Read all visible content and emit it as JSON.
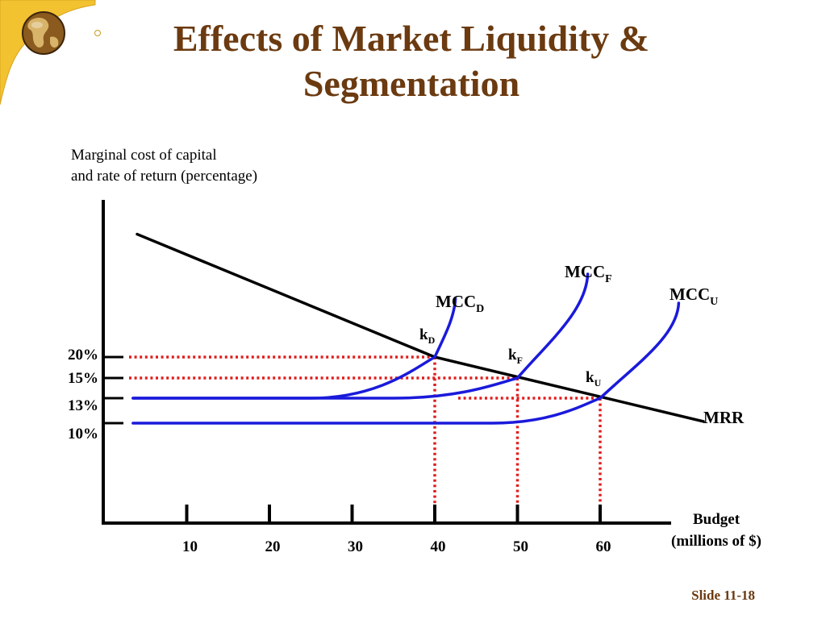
{
  "slide": {
    "title_line1": "Effects of Market Liquidity &",
    "title_line2": "Segmentation",
    "slide_number": "Slide 11-18"
  },
  "colors": {
    "title": "#6b3a10",
    "mcc_curves": "#1a1adb",
    "mrr_line": "#000000",
    "guide_lines": "#e11d1d"
  },
  "chart_data": {
    "type": "line",
    "ylabel_line1": "Marginal cost of capital",
    "ylabel_line2": "and rate of return (percentage)",
    "xlabel_line1": "Budget",
    "xlabel_line2": "(millions of $)",
    "x_ticks": [
      "10",
      "20",
      "30",
      "40",
      "50",
      "60"
    ],
    "y_ticks": [
      "20%",
      "15%",
      "13%",
      "10%"
    ],
    "series": [
      {
        "name": "MRR",
        "base": "MRR",
        "sub": "",
        "points": [
          [
            4,
            34.8
          ],
          [
            40,
            20
          ],
          [
            72.5,
            10.2
          ]
        ]
      },
      {
        "name": "MCCD",
        "base": "MCC",
        "sub": "D",
        "points": [
          [
            3.5,
            13
          ],
          [
            25,
            13
          ],
          [
            40,
            20
          ],
          [
            42.5,
            27
          ]
        ]
      },
      {
        "name": "MCCF",
        "base": "MCC",
        "sub": "F",
        "points": [
          [
            3.5,
            13
          ],
          [
            35,
            13
          ],
          [
            50,
            15
          ],
          [
            58.5,
            30
          ]
        ]
      },
      {
        "name": "MCCU",
        "base": "MCC",
        "sub": "U",
        "points": [
          [
            3.5,
            10
          ],
          [
            47,
            10
          ],
          [
            60,
            13
          ],
          [
            69.5,
            26.5
          ]
        ]
      }
    ],
    "equilibria": [
      {
        "base": "k",
        "sub": "D",
        "x": 40,
        "y": 20
      },
      {
        "base": "k",
        "sub": "F",
        "x": 50,
        "y": 15
      },
      {
        "base": "k",
        "sub": "U",
        "x": 60,
        "y": 13
      }
    ]
  }
}
